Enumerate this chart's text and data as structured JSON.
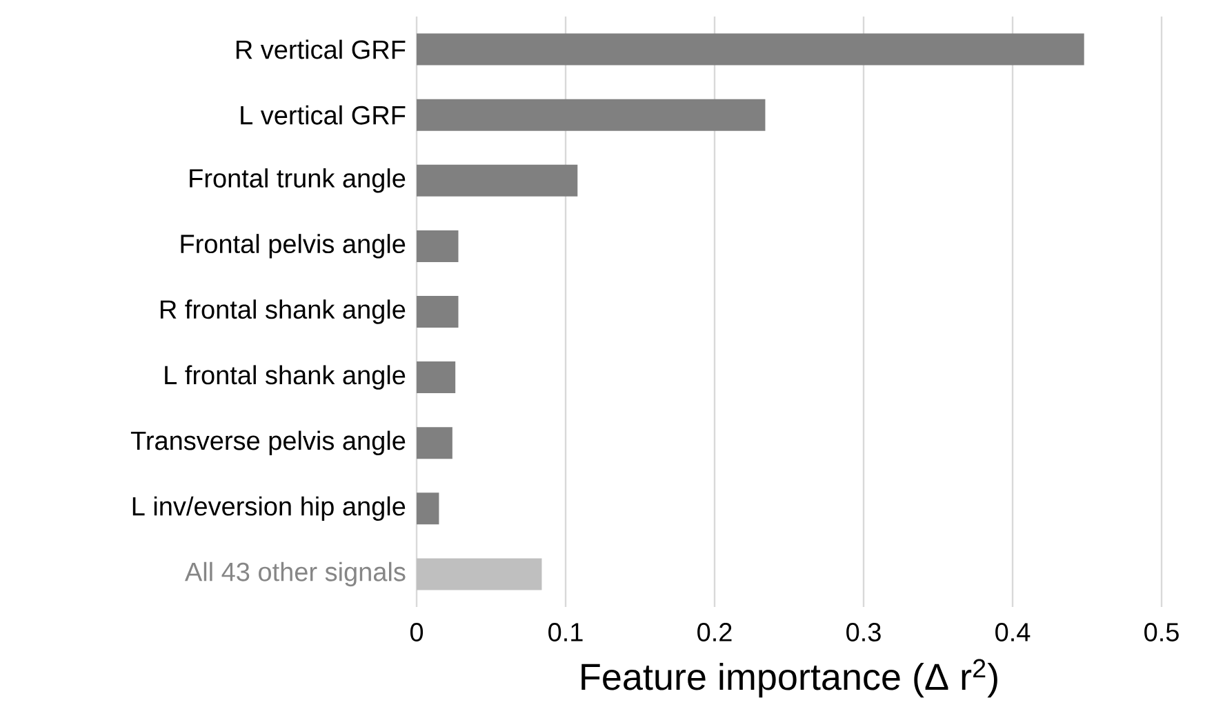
{
  "chart_data": {
    "type": "bar",
    "orientation": "horizontal",
    "xlabel": "Feature importance (Δ r$^{2}$)",
    "categories": [
      "R vertical GRF",
      "L vertical GRF",
      "Frontal trunk angle",
      "Frontal pelvis angle",
      "R frontal shank angle",
      "L frontal shank angle",
      "Transverse pelvis angle",
      "L inv/eversion hip angle",
      "All 43 other signals"
    ],
    "values": [
      0.448,
      0.234,
      0.108,
      0.028,
      0.028,
      0.026,
      0.024,
      0.015,
      0.084
    ],
    "colors": [
      "#808080",
      "#808080",
      "#808080",
      "#808080",
      "#808080",
      "#808080",
      "#808080",
      "#808080",
      "#bfbfbf"
    ],
    "xlim": [
      0,
      0.5
    ],
    "xticks": [
      0,
      0.1,
      0.2,
      0.3,
      0.4,
      0.5
    ],
    "grid": "x"
  }
}
